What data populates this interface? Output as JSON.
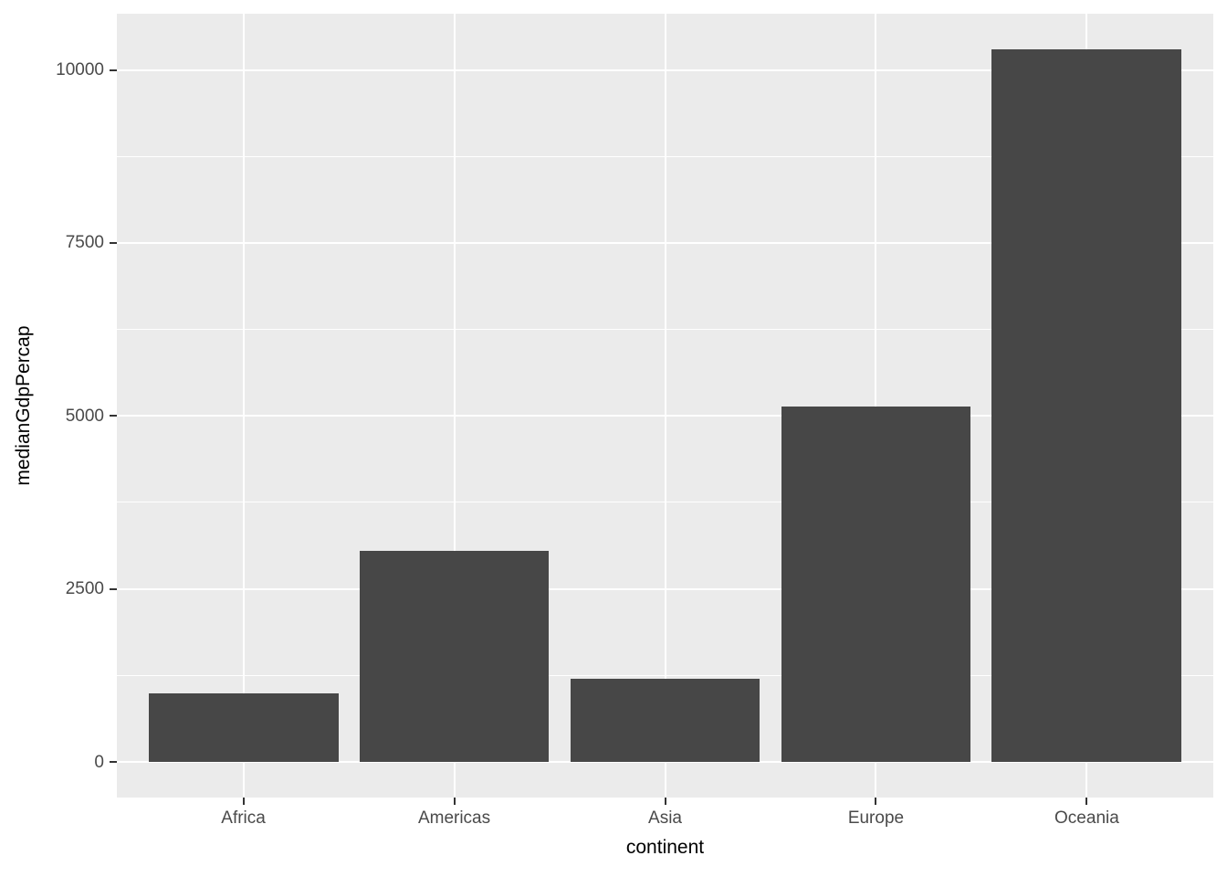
{
  "chart_data": {
    "type": "bar",
    "title": "",
    "xlabel": "continent",
    "ylabel": "medianGdpPercap",
    "categories": [
      "Africa",
      "Americas",
      "Asia",
      "Europe",
      "Oceania"
    ],
    "values": [
      987,
      3048,
      1207,
      5142,
      10298
    ],
    "y_major_ticks": [
      0,
      2500,
      5000,
      7500,
      10000
    ],
    "y_minor_ticks": [
      1250,
      3750,
      6250,
      8750
    ],
    "y_tick_labels": [
      "0",
      "2500",
      "5000",
      "7500",
      "10000"
    ],
    "ylim": [
      0,
      10298
    ],
    "y_expansion_fraction": 0.05,
    "grid": "on",
    "legend": "none",
    "style": "ggplot2-grey",
    "colors": {
      "bar_fill": "#474747",
      "panel_background": "#EBEBEB",
      "gridline": "#FFFFFF",
      "tick_label": "#4A4A4A",
      "tick_mark": "#333333",
      "axis_title": "#000000",
      "figure_background": "#FFFFFF"
    }
  }
}
